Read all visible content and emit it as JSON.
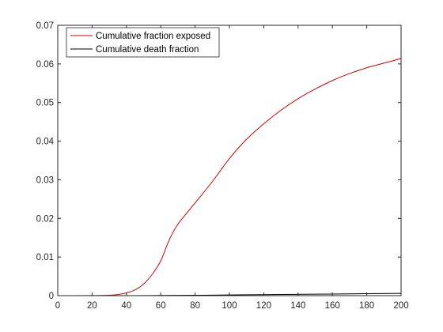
{
  "chart_data": {
    "type": "line",
    "title": "",
    "xlabel": "",
    "ylabel": "",
    "xlim": [
      0,
      200
    ],
    "ylim": [
      0,
      0.07
    ],
    "xticks": [
      0,
      20,
      40,
      60,
      80,
      100,
      120,
      140,
      160,
      180,
      200
    ],
    "yticks": [
      0,
      0.01,
      0.02,
      0.03,
      0.04,
      0.05,
      0.06,
      0.07
    ],
    "xtick_labels": [
      "0",
      "20",
      "40",
      "60",
      "80",
      "100",
      "120",
      "140",
      "160",
      "180",
      "200"
    ],
    "ytick_labels": [
      "0",
      "0.01",
      "0.02",
      "0.03",
      "0.04",
      "0.05",
      "0.06",
      "0.07"
    ],
    "grid": false,
    "legend_position": "top-left",
    "series": [
      {
        "name": "Cumulative fraction exposed",
        "color": "#d40000",
        "x": [
          0,
          20,
          30,
          35,
          40,
          45,
          50,
          55,
          60,
          65,
          70,
          80,
          90,
          100,
          110,
          120,
          130,
          140,
          150,
          160,
          170,
          180,
          190,
          200
        ],
        "y": [
          0,
          2e-05,
          0.0001,
          0.0003,
          0.0007,
          0.0015,
          0.003,
          0.0055,
          0.009,
          0.0145,
          0.0185,
          0.024,
          0.0295,
          0.0355,
          0.0405,
          0.0445,
          0.048,
          0.051,
          0.0535,
          0.0557,
          0.0575,
          0.059,
          0.0602,
          0.0614
        ]
      },
      {
        "name": "Cumulative death fraction",
        "color": "#000000",
        "x": [
          0,
          40,
          60,
          80,
          100,
          120,
          140,
          160,
          180,
          200
        ],
        "y": [
          0,
          1e-05,
          5e-05,
          0.0001,
          0.00018,
          0.00026,
          0.00034,
          0.00042,
          0.0005,
          0.00058
        ]
      }
    ]
  }
}
